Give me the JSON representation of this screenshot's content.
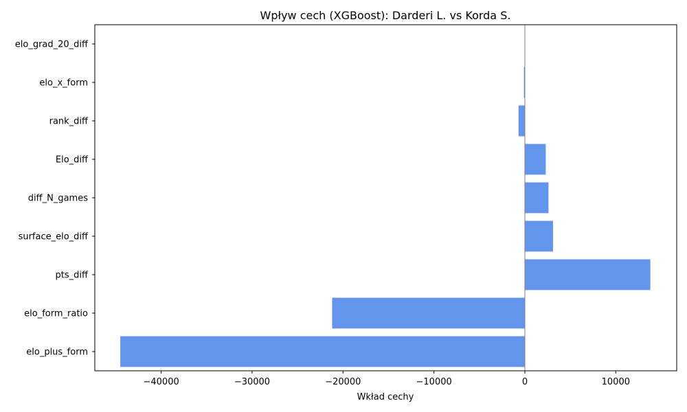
{
  "chart_data": {
    "type": "bar",
    "orientation": "horizontal",
    "title": "Wpływ cech (XGBoost): Darderi L. vs Korda S.",
    "xlabel": "Wkład cechy",
    "ylabel": "",
    "categories": [
      "elo_plus_form",
      "elo_form_ratio",
      "pts_diff",
      "surface_elo_diff",
      "diff_N_games",
      "Elo_diff",
      "rank_diff",
      "elo_x_form",
      "elo_grad_20_diff"
    ],
    "values": [
      -44500,
      -21200,
      13800,
      3100,
      2600,
      2300,
      -700,
      -100,
      0
    ],
    "xlim": [
      -47300,
      16700
    ],
    "xticks": [
      -40000,
      -30000,
      -20000,
      -10000,
      0,
      10000
    ],
    "xtick_labels": [
      "−40000",
      "−30000",
      "−20000",
      "−10000",
      "0",
      "10000"
    ],
    "bar_color": "#6495ed",
    "zero_line_color": "#808080",
    "grid": false,
    "legend": "none"
  }
}
